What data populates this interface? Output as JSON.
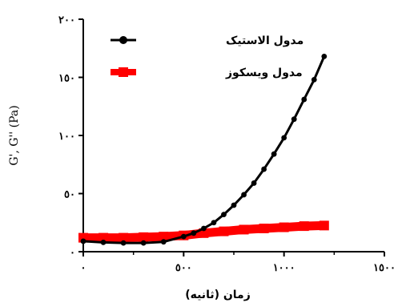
{
  "chart_data": {
    "type": "line",
    "title": "",
    "xlabel": "زمان (ثانيه)",
    "ylabel": "G', G'' (Pa)",
    "xlim": [
      0,
      1500
    ],
    "ylim": [
      0,
      200
    ],
    "x_ticks": [
      0,
      500,
      1000,
      1500
    ],
    "x_tick_labels": [
      "٠",
      "٥٠٠",
      "١٠٠٠",
      "١٥٠٠"
    ],
    "y_ticks": [
      0,
      50,
      100,
      150,
      200
    ],
    "y_tick_labels": [
      "٠",
      "٥٠",
      "١٠٠",
      "١٥٠",
      "٢٠٠"
    ],
    "grid": false,
    "legend_position": "top-left",
    "series": [
      {
        "name": "مدول الاستيک",
        "color": "#000000",
        "marker": "circle",
        "x": [
          0,
          100,
          200,
          300,
          400,
          500,
          550,
          600,
          650,
          700,
          750,
          800,
          850,
          900,
          950,
          1000,
          1050,
          1100,
          1150,
          1200
        ],
        "y": [
          9,
          8,
          7.5,
          7.5,
          8.5,
          13,
          16,
          20,
          25,
          32,
          40,
          49,
          59,
          71,
          84,
          98,
          114,
          131,
          148,
          168
        ]
      },
      {
        "name": "مدول ويسکوز",
        "color": "#ff0000",
        "marker": "square",
        "x": [
          0,
          100,
          200,
          300,
          400,
          500,
          600,
          700,
          800,
          900,
          1000,
          1100,
          1200
        ],
        "y": [
          12,
          12,
          12,
          12.5,
          13,
          14,
          16,
          17.5,
          19,
          20,
          21,
          22,
          22.5
        ]
      }
    ]
  }
}
